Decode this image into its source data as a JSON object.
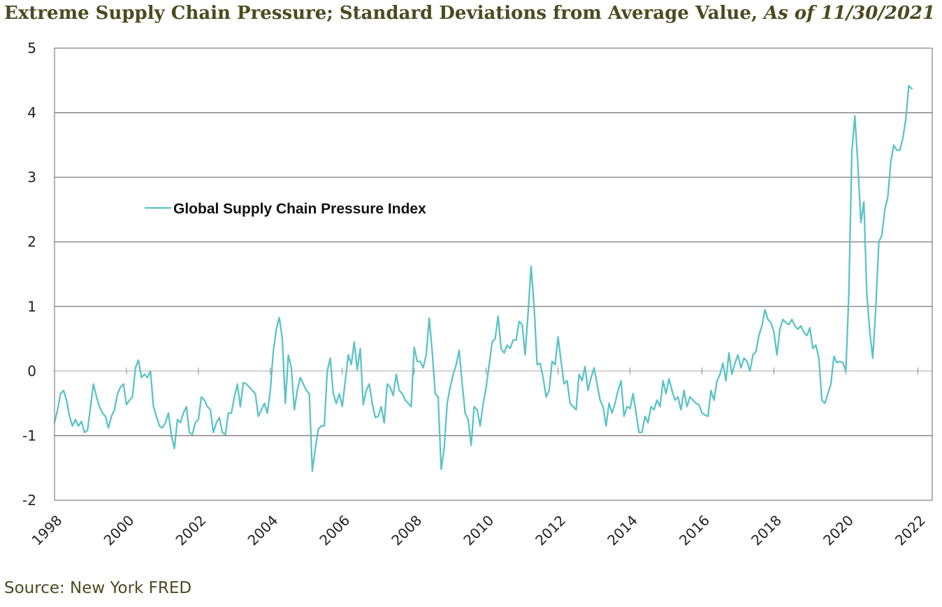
{
  "header": {
    "title": "Extreme Supply Chain Pressure; Standard Deviations from Average Value,",
    "title_date": "As of 11/30/2021"
  },
  "footer": {
    "source": "Source: New York FRED"
  },
  "colors": {
    "series": "#5bc3c6",
    "title": "#4c4a1f",
    "grid": "#8a8a8a",
    "frame": "#8a8a8a"
  },
  "chart_data": {
    "type": "line",
    "title": "Extreme Supply Chain Pressure; Standard Deviations from Average Value, As of 11/30/2021",
    "xlabel": "",
    "ylabel": "",
    "xlim": [
      1998,
      2022.4
    ],
    "ylim": [
      -2,
      5
    ],
    "x_ticks": [
      1998,
      2000,
      2002,
      2004,
      2006,
      2008,
      2010,
      2012,
      2014,
      2016,
      2018,
      2020,
      2022
    ],
    "x_tick_labels": [
      "1998",
      "2000",
      "2002",
      "2004",
      "2006",
      "2008",
      "2010",
      "2012",
      "2014",
      "2016",
      "2018",
      "2020",
      "2022"
    ],
    "y_ticks": [
      -2,
      -1,
      0,
      1,
      2,
      3,
      4,
      5
    ],
    "y_tick_labels": [
      "-2",
      "-1",
      "0",
      "1",
      "2",
      "3",
      "4",
      "5"
    ],
    "grid": "horizontal",
    "legend_position": "upper-left",
    "series": [
      {
        "name": "Global Supply Chain Pressure Index",
        "x_start": 1998.0,
        "x_step": 0.08333,
        "values": [
          -0.8,
          -0.6,
          -0.35,
          -0.3,
          -0.45,
          -0.7,
          -0.85,
          -0.75,
          -0.85,
          -0.78,
          -0.95,
          -0.92,
          -0.55,
          -0.2,
          -0.4,
          -0.55,
          -0.65,
          -0.7,
          -0.88,
          -0.7,
          -0.6,
          -0.35,
          -0.25,
          -0.2,
          -0.52,
          -0.45,
          -0.4,
          0.05,
          0.17,
          -0.1,
          -0.05,
          -0.1,
          0.0,
          -0.55,
          -0.7,
          -0.85,
          -0.88,
          -0.8,
          -0.65,
          -1.0,
          -1.2,
          -0.75,
          -0.8,
          -0.65,
          -0.55,
          -0.95,
          -0.98,
          -0.8,
          -0.75,
          -0.4,
          -0.45,
          -0.55,
          -0.6,
          -0.95,
          -0.8,
          -0.72,
          -0.95,
          -0.98,
          -0.65,
          -0.65,
          -0.4,
          -0.2,
          -0.55,
          -0.18,
          -0.2,
          -0.25,
          -0.3,
          -0.35,
          -0.7,
          -0.6,
          -0.5,
          -0.65,
          -0.3,
          0.3,
          0.65,
          0.83,
          0.5,
          -0.5,
          0.25,
          0.05,
          -0.6,
          -0.3,
          -0.1,
          -0.2,
          -0.3,
          -0.35,
          -1.55,
          -1.2,
          -0.9,
          -0.85,
          -0.85,
          0.0,
          0.2,
          -0.35,
          -0.5,
          -0.35,
          -0.55,
          -0.15,
          0.25,
          0.1,
          0.45,
          0.02,
          0.35,
          -0.52,
          -0.3,
          -0.2,
          -0.5,
          -0.72,
          -0.7,
          -0.55,
          -0.8,
          -0.2,
          -0.25,
          -0.38,
          -0.05,
          -0.3,
          -0.35,
          -0.45,
          -0.5,
          -0.55,
          0.37,
          0.15,
          0.15,
          0.05,
          0.25,
          0.82,
          0.3,
          -0.35,
          -0.4,
          -1.52,
          -1.2,
          -0.5,
          -0.25,
          -0.05,
          0.1,
          0.32,
          -0.2,
          -0.65,
          -0.75,
          -1.15,
          -0.55,
          -0.6,
          -0.85,
          -0.5,
          -0.25,
          0.1,
          0.45,
          0.5,
          0.85,
          0.35,
          0.28,
          0.4,
          0.35,
          0.48,
          0.48,
          0.77,
          0.72,
          0.25,
          0.9,
          1.62,
          1.0,
          0.1,
          0.12,
          -0.1,
          -0.4,
          -0.3,
          0.15,
          0.1,
          0.53,
          0.15,
          -0.2,
          -0.15,
          -0.5,
          -0.55,
          -0.6,
          -0.05,
          -0.15,
          0.07,
          -0.3,
          -0.1,
          0.05,
          -0.2,
          -0.45,
          -0.55,
          -0.85,
          -0.5,
          -0.65,
          -0.5,
          -0.3,
          -0.15,
          -0.7,
          -0.55,
          -0.58,
          -0.35,
          -0.65,
          -0.95,
          -0.95,
          -0.7,
          -0.8,
          -0.55,
          -0.6,
          -0.45,
          -0.55,
          -0.15,
          -0.35,
          -0.12,
          -0.3,
          -0.45,
          -0.4,
          -0.6,
          -0.3,
          -0.55,
          -0.4,
          -0.45,
          -0.5,
          -0.52,
          -0.65,
          -0.68,
          -0.7,
          -0.3,
          -0.45,
          -0.15,
          -0.05,
          0.12,
          -0.15,
          0.28,
          -0.05,
          0.12,
          0.25,
          0.05,
          0.2,
          0.15,
          0.0,
          0.25,
          0.3,
          0.55,
          0.7,
          0.95,
          0.8,
          0.75,
          0.6,
          0.25,
          0.65,
          0.8,
          0.75,
          0.72,
          0.8,
          0.7,
          0.65,
          0.7,
          0.6,
          0.55,
          0.67,
          0.35,
          0.4,
          0.2,
          -0.45,
          -0.5,
          -0.35,
          -0.2,
          0.23,
          0.13,
          0.15,
          0.13,
          0.0,
          1.2,
          3.4,
          3.95,
          3.2,
          2.3,
          2.62,
          1.2,
          0.6,
          0.2,
          1.0,
          2.0,
          2.1,
          2.5,
          2.7,
          3.25,
          3.5,
          3.42,
          3.42,
          3.6,
          3.9,
          4.42,
          4.37
        ]
      }
    ]
  }
}
